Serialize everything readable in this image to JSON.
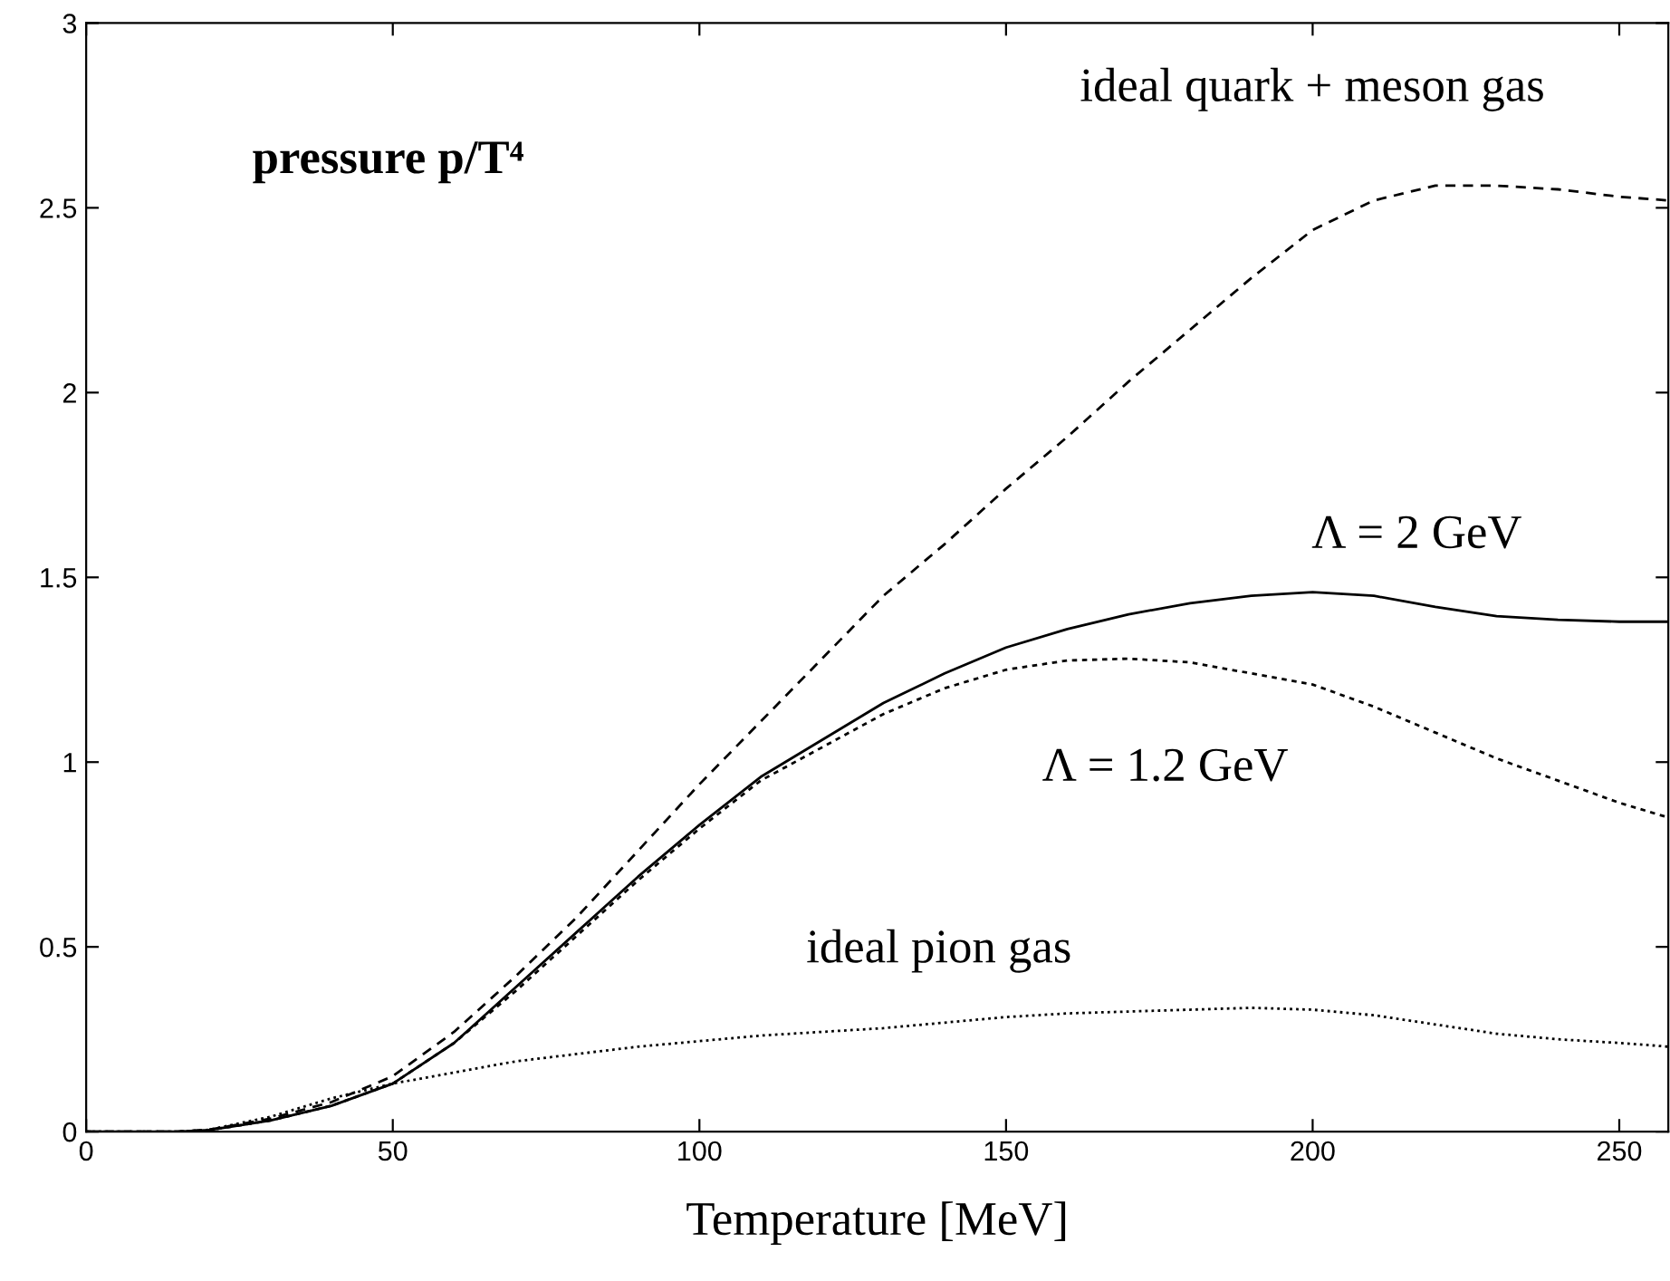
{
  "chart_data": {
    "type": "line",
    "xlabel": "Temperature [MeV]",
    "x": [
      0,
      15,
      20,
      30,
      40,
      50,
      60,
      70,
      80,
      90,
      100,
      110,
      120,
      130,
      140,
      150,
      160,
      170,
      180,
      190,
      200,
      210,
      220,
      230,
      240,
      250,
      258
    ],
    "series": [
      {
        "color": "#000000",
        "line_style": "dashed",
        "values": [
          0,
          0,
          0.005,
          0.035,
          0.08,
          0.15,
          0.27,
          0.42,
          0.58,
          0.76,
          0.94,
          1.11,
          1.28,
          1.45,
          1.59,
          1.74,
          1.88,
          2.03,
          2.17,
          2.31,
          2.44,
          2.52,
          2.56,
          2.56,
          2.55,
          2.53,
          2.52
        ]
      },
      {
        "name": "Λ = 2 GeV",
        "color": "#000000",
        "line_style": "solid",
        "values": [
          0,
          0,
          0.004,
          0.03,
          0.07,
          0.13,
          0.24,
          0.39,
          0.54,
          0.69,
          0.83,
          0.96,
          1.06,
          1.16,
          1.24,
          1.31,
          1.36,
          1.4,
          1.43,
          1.45,
          1.46,
          1.45,
          1.42,
          1.395,
          1.385,
          1.38,
          1.38
        ]
      },
      {
        "name": "Λ = 1.2 GeV",
        "color": "#000000",
        "line_style": "dashed",
        "values": [
          0,
          0,
          0.004,
          0.03,
          0.07,
          0.13,
          0.24,
          0.38,
          0.53,
          0.68,
          0.82,
          0.95,
          1.04,
          1.13,
          1.2,
          1.25,
          1.275,
          1.28,
          1.27,
          1.24,
          1.21,
          1.15,
          1.08,
          1.01,
          0.95,
          0.89,
          0.85
        ]
      },
      {
        "name": "ideal pion gas",
        "color": "#000000",
        "line_style": "dotted",
        "values": [
          0,
          0,
          0.005,
          0.04,
          0.09,
          0.13,
          0.16,
          0.19,
          0.21,
          0.23,
          0.245,
          0.26,
          0.27,
          0.28,
          0.295,
          0.31,
          0.32,
          0.325,
          0.33,
          0.335,
          0.33,
          0.315,
          0.29,
          0.265,
          0.25,
          0.24,
          0.23
        ]
      }
    ],
    "annotations": [
      "pressure p/T⁴",
      "ideal quark + meson gas"
    ],
    "xlim": [
      0,
      258
    ],
    "ylim": [
      0,
      3
    ],
    "xticks": [
      0,
      50,
      100,
      150,
      200,
      250
    ],
    "yticks": [
      0,
      0.5,
      1,
      1.5,
      2,
      2.5,
      3
    ],
    "grid": false,
    "legend": false,
    "marker": "none"
  }
}
